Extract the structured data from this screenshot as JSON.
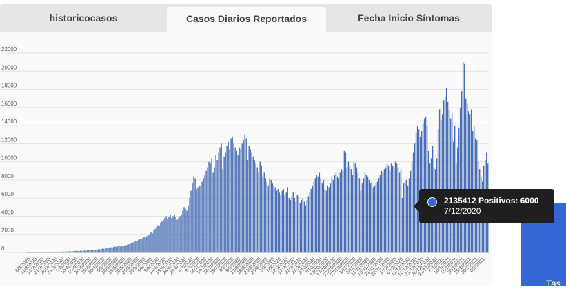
{
  "tabs": [
    {
      "label": "historicocasos",
      "active": false
    },
    {
      "label": "Casos Diarios Reportados",
      "active": true
    },
    {
      "label": "Fecha Inicio Síntomas",
      "active": false
    }
  ],
  "tooltip": {
    "label": "2135412 Positivos: 6000",
    "date": "7/12/2020",
    "dot_color": "#3466d6"
  },
  "side_panel": {
    "text": "Tas"
  },
  "colors": {
    "bar": "#4a6fb7",
    "bar_edge": "#2f4f96",
    "grid": "#e3e3e3",
    "accent_block": "#3466d6"
  },
  "chart_data": {
    "type": "bar",
    "title": "",
    "xlabel": "",
    "ylabel": "",
    "ylim": [
      0,
      22000
    ],
    "yticks": [
      0,
      2000,
      4000,
      6000,
      8000,
      10000,
      12000,
      14000,
      16000,
      18000,
      20000,
      22000
    ],
    "xtick_labels": [
      "6/3/2020",
      "11/3/2020",
      "16/3/2020",
      "21/3/2020",
      "26/3/2020",
      "31/3/2020",
      "5/4/2020",
      "10/4/2020",
      "15/4/2020",
      "20/4/2020",
      "25/4/2020",
      "30/4/2020",
      "5/5/2020",
      "10/5/2020",
      "15/5/2020",
      "20/5/2020",
      "25/5/2020",
      "30/5/2020",
      "4/6/2020",
      "9/6/2020",
      "14/6/2020",
      "19/6/2020",
      "24/6/2020",
      "29/6/2020",
      "4/7/2020",
      "9/7/2020",
      "14/7/2020",
      "19/7/2020",
      "24/7/2020",
      "29/7/2020",
      "3/8/2020",
      "8/8/2020",
      "13/8/2020",
      "18/8/2020",
      "23/8/2020",
      "28/8/2020",
      "2/9/2020",
      "7/9/2020",
      "12/9/2020",
      "17/9/2020",
      "22/9/2020",
      "27/9/2020",
      "2/10/2020",
      "7/10/2020",
      "12/10/2020",
      "17/10/2020",
      "22/10/2020",
      "27/10/2020",
      "1/11/2020",
      "6/11/2020",
      "11/11/2020",
      "16/11/2020",
      "21/11/2020",
      "26/11/2020",
      "1/12/2020",
      "6/12/2020",
      "11/12/2020",
      "16/12/2020",
      "21/12/2020",
      "26/12/2020",
      "31/12/2020",
      "5/1/2021",
      "10/1/2021",
      "15/1/2021",
      "20/1/2021",
      "25/1/2021",
      "30/1/2021",
      "4/2/2021"
    ],
    "series": [
      {
        "name": "Casos Diarios Reportados",
        "values": [
          0,
          0,
          0,
          0,
          0,
          0,
          0,
          0,
          0,
          0,
          0,
          0,
          0,
          0,
          0,
          0,
          30,
          50,
          40,
          60,
          80,
          70,
          90,
          60,
          80,
          100,
          90,
          110,
          100,
          120,
          130,
          110,
          140,
          120,
          160,
          180,
          150,
          170,
          190,
          160,
          200,
          210,
          180,
          220,
          240,
          200,
          260,
          280,
          300,
          260,
          320,
          360,
          340,
          380,
          420,
          400,
          450,
          500,
          480,
          520,
          560,
          540,
          600,
          640,
          620,
          680,
          700,
          660,
          720,
          760,
          740,
          800,
          850,
          900,
          960,
          1000,
          1100,
          1200,
          1300,
          1250,
          1400,
          1500,
          1450,
          1600,
          1700,
          1650,
          1800,
          1900,
          2000,
          2200,
          2100,
          2400,
          2600,
          2800,
          3000,
          2900,
          3200,
          3400,
          3600,
          3800,
          4000,
          3700,
          3900,
          4100,
          3800,
          4000,
          4200,
          3900,
          3600,
          3800,
          4000,
          4200,
          4600,
          5000,
          4800,
          4600,
          5200,
          6000,
          6800,
          7600,
          8400,
          8200,
          7000,
          7200,
          7400,
          7300,
          7800,
          8200,
          8600,
          9000,
          9400,
          10000,
          9800,
          10400,
          8800,
          9400,
          10800,
          10200,
          11000,
          11600,
          12000,
          9200,
          10600,
          11000,
          11800,
          12200,
          11400,
          12600,
          12800,
          12000,
          11600,
          11200,
          10800,
          11600,
          11400,
          12000,
          12400,
          13000,
          12600,
          10200,
          11800,
          11400,
          11000,
          10600,
          10200,
          9800,
          9400,
          8800,
          10000,
          9600,
          8400,
          8800,
          8200,
          7800,
          7400,
          8200,
          8000,
          7600,
          7400,
          7200,
          6800,
          7000,
          6600,
          6400,
          6800,
          7000,
          6400,
          6600,
          7200,
          6000,
          5800,
          6200,
          6600,
          6000,
          5600,
          6400,
          6200,
          5400,
          5800,
          6000,
          5600,
          5200,
          5800,
          6200,
          6600,
          7000,
          7400,
          7800,
          8200,
          8600,
          8400,
          8800,
          8200,
          7600,
          8000,
          7000,
          6800,
          7400,
          7200,
          7600,
          8400,
          8000,
          8600,
          8800,
          8400,
          8200,
          8800,
          9200,
          9000,
          11200,
          11000,
          9400,
          10000,
          9600,
          9200,
          8600,
          10000,
          9800,
          9400,
          8800,
          8200,
          6800,
          7600,
          8200,
          8800,
          8600,
          8400,
          8000,
          7600,
          7800,
          7200,
          7400,
          7600,
          7800,
          8200,
          8600,
          9000,
          8800,
          9200,
          9400,
          9800,
          9600,
          9000,
          9800,
          9600,
          9400,
          10000,
          9800,
          9400,
          8800,
          9200,
          6000,
          7600,
          7800,
          8000,
          7400,
          8200,
          9000,
          10000,
          11000,
          12000,
          13200,
          14000,
          13600,
          12800,
          13400,
          14200,
          14800,
          15000,
          14000,
          11200,
          9800,
          10400,
          11800,
          9400,
          9200,
          10400,
          13600,
          15800,
          14600,
          15200,
          16800,
          17200,
          18200,
          16600,
          15800,
          14800,
          15400,
          12200,
          14000,
          9800,
          11600,
          13800,
          16000,
          17800,
          21000,
          20800,
          17000,
          16400,
          15600,
          15200,
          15800,
          13400,
          14000,
          12600,
          12400,
          10000,
          9200,
          8400,
          7800,
          9600,
          10200,
          11000,
          9800
        ]
      }
    ]
  }
}
